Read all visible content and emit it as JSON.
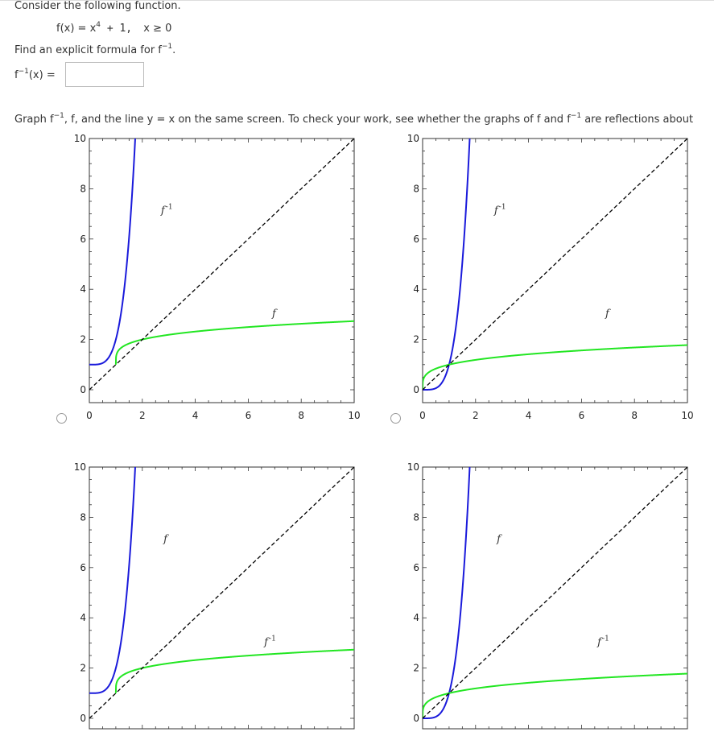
{
  "question": {
    "intro": "Consider the following function.",
    "function_lhs": "f(x) = x",
    "function_exp": "4",
    "function_rhs": " + 1,",
    "domain_lhs": "x ≥ 0",
    "find_text": "Find an explicit formula for f",
    "find_sup": "−1",
    "find_end": ".",
    "answer_label_base": "f",
    "answer_label_sup": "−1",
    "answer_label_end": "(x) =",
    "answer_value": "",
    "graph_instruction_1": "Graph f",
    "graph_instruction_sup1": "−1",
    "graph_instruction_2": ", f, and the line ",
    "graph_instruction_yx": "y = x",
    "graph_instruction_3": " on the same screen. To check your work, see whether the graphs of f and f",
    "graph_instruction_sup2": "−1",
    "graph_instruction_4": " are reflections about"
  },
  "colors": {
    "blue_curve": "#1a1adb",
    "green_curve": "#22e622",
    "identity_line": "#000000"
  },
  "chart_data": [
    {
      "type": "line",
      "option": "A",
      "xlim": [
        0,
        10
      ],
      "ylim": [
        0,
        10
      ],
      "xticks": [
        "0",
        "2",
        "4",
        "6",
        "8",
        "10"
      ],
      "yticks": [
        "0",
        "2",
        "4",
        "6",
        "8",
        "10"
      ],
      "series": [
        {
          "label_base": "f",
          "label_sup": "-1",
          "color": "blue",
          "func": "x4plus1"
        },
        {
          "label_base": "f",
          "label_sup": "",
          "color": "green",
          "func": "root4xminus1"
        },
        {
          "label_base": "",
          "label_sup": "",
          "color": "black",
          "style": "dashed",
          "func": "identity"
        }
      ],
      "labels": [
        {
          "text": "f",
          "sup": "-1",
          "x": 2.7,
          "y": 7.0
        },
        {
          "text": "f",
          "sup": "",
          "x": 6.9,
          "y": 2.9
        }
      ]
    },
    {
      "type": "line",
      "option": "B",
      "xlim": [
        0,
        10
      ],
      "ylim": [
        0,
        10
      ],
      "xticks": [
        "0",
        "2",
        "4",
        "6",
        "8",
        "10"
      ],
      "yticks": [
        "0",
        "2",
        "4",
        "6",
        "8",
        "10"
      ],
      "series": [
        {
          "label_base": "f",
          "label_sup": "-1",
          "color": "blue",
          "func": "x4"
        },
        {
          "label_base": "f",
          "label_sup": "",
          "color": "green",
          "func": "root4x"
        },
        {
          "label_base": "",
          "label_sup": "",
          "color": "black",
          "style": "dashed",
          "func": "identity"
        }
      ],
      "labels": [
        {
          "text": "f",
          "sup": "-1",
          "x": 2.7,
          "y": 7.0
        },
        {
          "text": "f",
          "sup": "",
          "x": 6.9,
          "y": 2.9
        }
      ]
    },
    {
      "type": "line",
      "option": "C",
      "xlim": [
        0,
        10
      ],
      "ylim": [
        0,
        10
      ],
      "xticks": [],
      "yticks": [
        "0",
        "2",
        "4",
        "6",
        "8",
        "10"
      ],
      "series": [
        {
          "label_base": "f",
          "label_sup": "",
          "color": "blue",
          "func": "x4plus1"
        },
        {
          "label_base": "f",
          "label_sup": "-1",
          "color": "green",
          "func": "root4xminus1"
        },
        {
          "label_base": "",
          "label_sup": "",
          "color": "black",
          "style": "dashed",
          "func": "identity"
        }
      ],
      "labels": [
        {
          "text": "f",
          "sup": "",
          "x": 2.8,
          "y": 7.0
        },
        {
          "text": "f",
          "sup": "-1",
          "x": 6.6,
          "y": 2.9
        }
      ]
    },
    {
      "type": "line",
      "option": "D",
      "xlim": [
        0,
        10
      ],
      "ylim": [
        0,
        10
      ],
      "xticks": [],
      "yticks": [
        "0",
        "2",
        "4",
        "6",
        "8",
        "10"
      ],
      "series": [
        {
          "label_base": "f",
          "label_sup": "",
          "color": "blue",
          "func": "x4"
        },
        {
          "label_base": "f",
          "label_sup": "-1",
          "color": "green",
          "func": "root4x"
        },
        {
          "label_base": "",
          "label_sup": "",
          "color": "black",
          "style": "dashed",
          "func": "identity"
        }
      ],
      "labels": [
        {
          "text": "f",
          "sup": "",
          "x": 2.8,
          "y": 7.0
        },
        {
          "text": "f",
          "sup": "-1",
          "x": 6.6,
          "y": 2.9
        }
      ]
    }
  ]
}
